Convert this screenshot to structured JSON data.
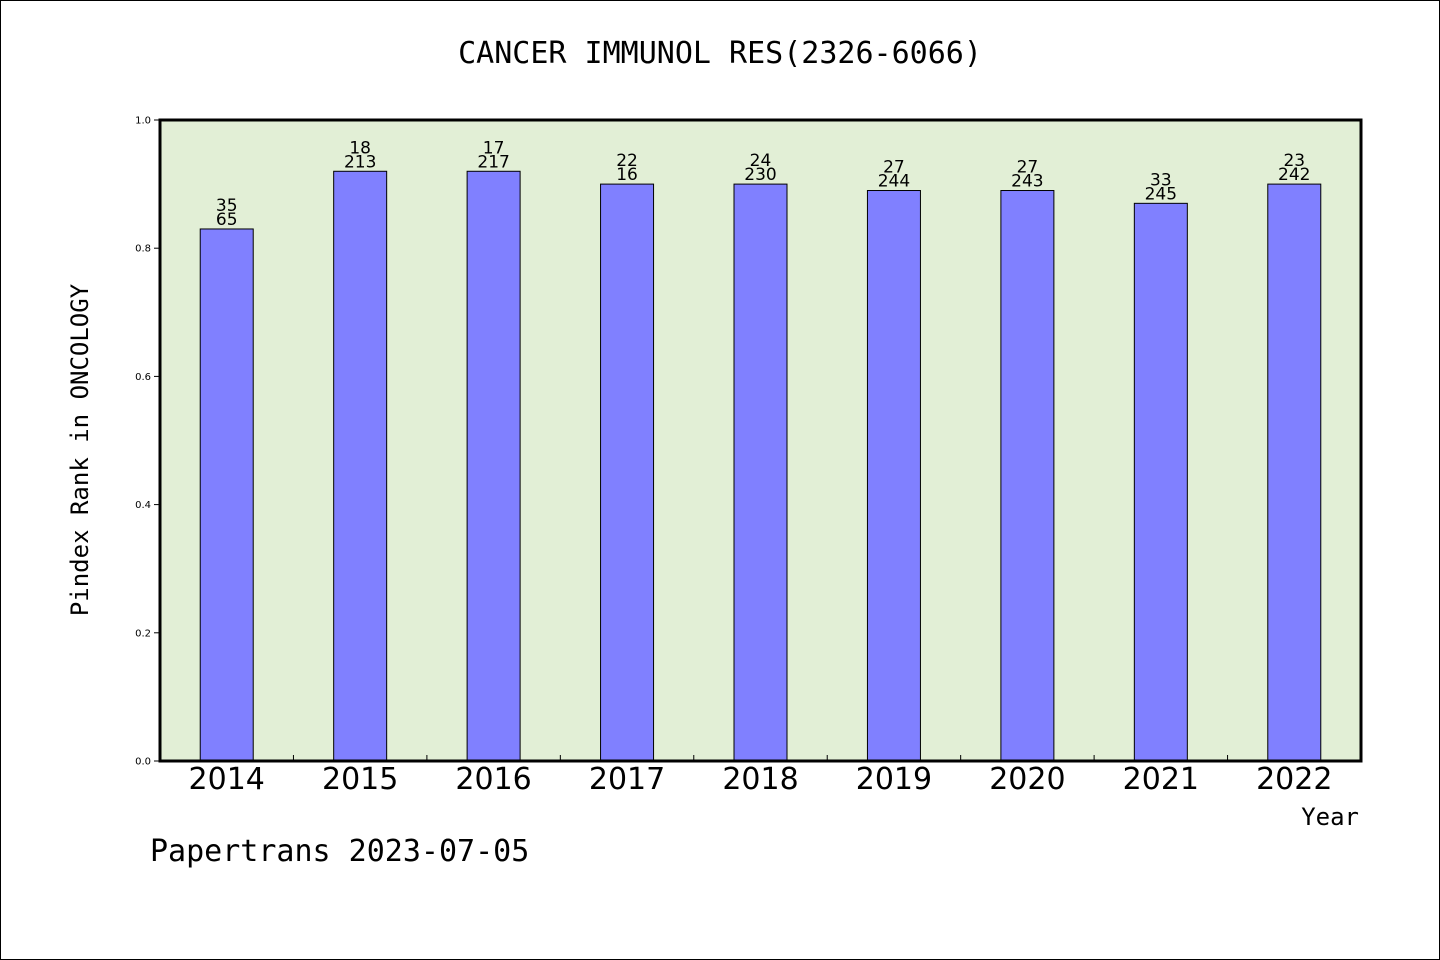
{
  "chart_data": {
    "type": "bar",
    "title": "CANCER IMMUNOL RES(2326-6066)",
    "xlabel": "Year",
    "ylabel": "Pindex Rank in ONCOLOGY",
    "categories": [
      "2014",
      "2015",
      "2016",
      "2017",
      "2018",
      "2019",
      "2020",
      "2021",
      "2022"
    ],
    "values": [
      0.83,
      0.92,
      0.92,
      0.9,
      0.9,
      0.89,
      0.89,
      0.87,
      0.9
    ],
    "bar_labels_top": [
      "35",
      "18",
      "17",
      "22",
      "24",
      "27",
      "27",
      "33",
      "23"
    ],
    "bar_labels_bottom": [
      "65",
      "213",
      "217",
      "16",
      "230",
      "244",
      "243",
      "245",
      "242"
    ],
    "ylim": [
      0,
      1.0
    ],
    "yticks": [
      "0.0",
      "0.2",
      "0.4",
      "0.6",
      "0.8",
      "1.0"
    ],
    "grid": false,
    "colors": {
      "bar_fill": "#8080ff",
      "plot_background": "#e2efd6",
      "axis": "#000000"
    }
  },
  "footer": "Papertrans 2023-07-05"
}
